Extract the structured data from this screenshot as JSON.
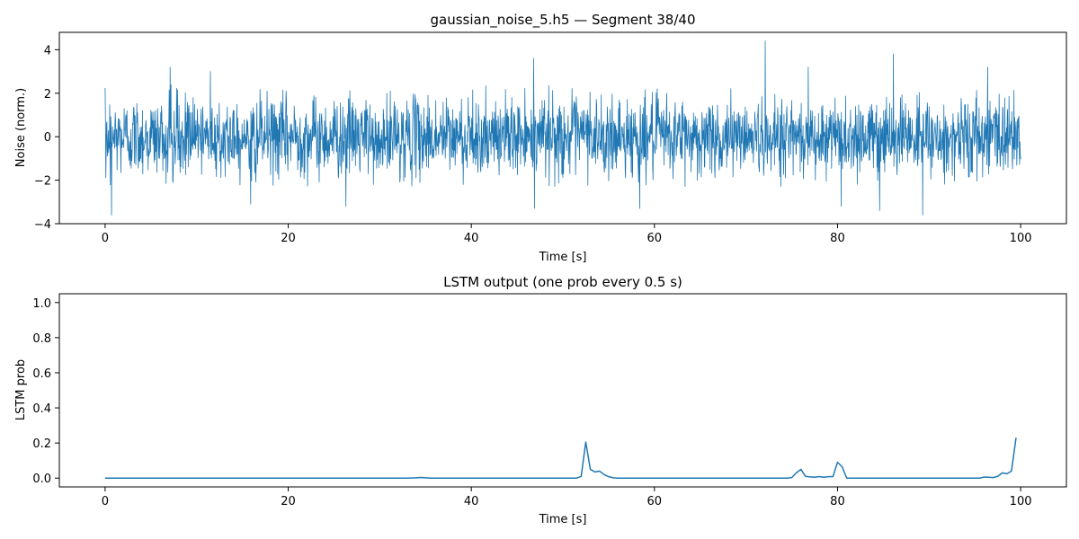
{
  "colors": {
    "series": "#1f77b4",
    "axes": "#000000",
    "background": "#ffffff"
  },
  "chart_data": [
    {
      "type": "line",
      "title": "gaussian_noise_5.h5 — Segment 38/40",
      "xlabel": "Time [s]",
      "ylabel": "Noise (norm.)",
      "xlim": [
        -5,
        105
      ],
      "ylim": [
        -4,
        4.8
      ],
      "xticks": [
        0,
        20,
        40,
        60,
        80,
        100
      ],
      "yticks": [
        -4,
        -2,
        0,
        2,
        4
      ],
      "grid": false,
      "series": [
        {
          "sampling": "dense gaussian noise, 0–100 s",
          "x_range": [
            0,
            100
          ],
          "typical_amplitude": [
            -2.3,
            2.4
          ],
          "peaks": [
            {
              "x": 0.7,
              "y": -3.6
            },
            {
              "x": 7.1,
              "y": 3.2
            },
            {
              "x": 11.5,
              "y": 3.0
            },
            {
              "x": 15.9,
              "y": -3.1
            },
            {
              "x": 26.3,
              "y": -3.2
            },
            {
              "x": 46.8,
              "y": 3.6
            },
            {
              "x": 46.9,
              "y": -3.3
            },
            {
              "x": 58.4,
              "y": -3.3
            },
            {
              "x": 72.1,
              "y": 4.4
            },
            {
              "x": 76.8,
              "y": 3.2
            },
            {
              "x": 80.4,
              "y": -3.2
            },
            {
              "x": 84.6,
              "y": -3.4
            },
            {
              "x": 86.1,
              "y": 3.8
            },
            {
              "x": 89.3,
              "y": -3.6
            },
            {
              "x": 96.4,
              "y": 3.2
            }
          ]
        }
      ]
    },
    {
      "type": "line",
      "title": "LSTM output (one prob every 0.5 s)",
      "xlabel": "Time [s]",
      "ylabel": "LSTM prob",
      "xlim": [
        -5,
        105
      ],
      "ylim": [
        -0.05,
        1.05
      ],
      "xticks": [
        0,
        20,
        40,
        60,
        80,
        100
      ],
      "yticks": [
        0.0,
        0.2,
        0.4,
        0.6,
        0.8,
        1.0
      ],
      "ytick_labels": [
        "0.0",
        "0.2",
        "0.4",
        "0.6",
        "0.8",
        "1.0"
      ],
      "grid": false,
      "series": [
        {
          "x": [
            0,
            33,
            34,
            34.5,
            35,
            35.5,
            51.5,
            52,
            52.5,
            53,
            53.5,
            54,
            54.5,
            55,
            55.5,
            56,
            74.5,
            75,
            75.5,
            76,
            76.5,
            77,
            77.5,
            78,
            78.5,
            79,
            79.5,
            80,
            80.5,
            81,
            95.5,
            96,
            96.5,
            97,
            97.5,
            98,
            98.5,
            99,
            99.5
          ],
          "y": [
            0.0,
            0.0,
            0.002,
            0.004,
            0.002,
            0.0,
            0.0,
            0.01,
            0.205,
            0.05,
            0.035,
            0.04,
            0.02,
            0.008,
            0.002,
            0.0,
            0.0,
            0.003,
            0.03,
            0.05,
            0.01,
            0.007,
            0.005,
            0.009,
            0.005,
            0.008,
            0.009,
            0.09,
            0.065,
            0.0,
            0.0,
            0.006,
            0.005,
            0.003,
            0.01,
            0.03,
            0.025,
            0.04,
            0.23
          ]
        }
      ]
    }
  ]
}
